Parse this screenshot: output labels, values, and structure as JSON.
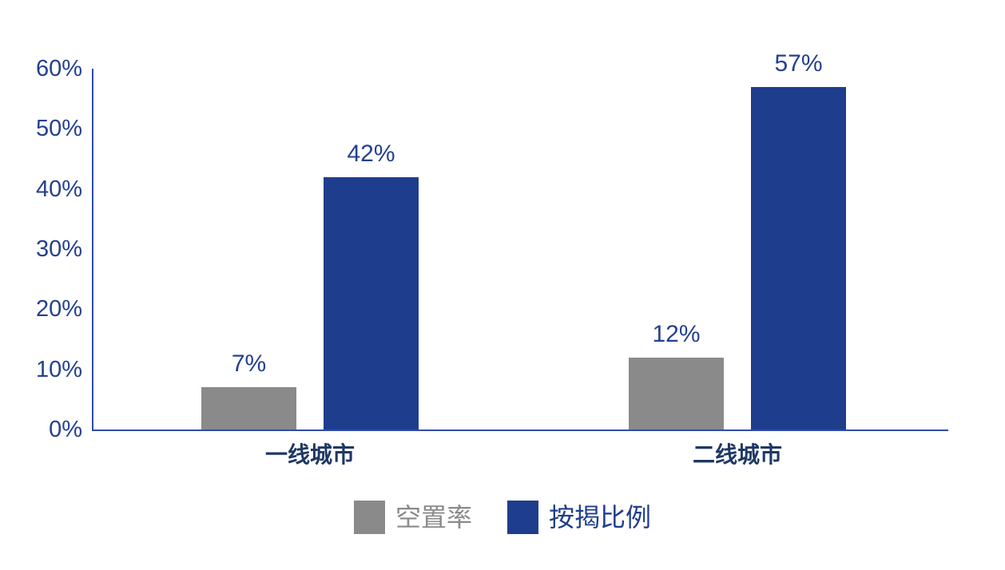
{
  "chart_data": {
    "type": "bar",
    "title": "",
    "xlabel": "",
    "ylabel": "",
    "categories": [
      "一线城市",
      "二线城市"
    ],
    "series": [
      {
        "name": "空置率",
        "color": "#8A8A8A",
        "legend_text_color": "#8A8A8A",
        "values": [
          7,
          12
        ],
        "value_labels": [
          "7%",
          "12%"
        ]
      },
      {
        "name": "按揭比例",
        "color": "#1E3D8C",
        "legend_text_color": "#1E3D8C",
        "values": [
          42,
          57
        ],
        "value_labels": [
          "42%",
          "57%"
        ]
      }
    ],
    "ylim": [
      0,
      60
    ],
    "yticks": [
      0,
      10,
      20,
      30,
      40,
      50,
      60
    ],
    "ytick_labels": [
      "0%",
      "10%",
      "20%",
      "30%",
      "40%",
      "50%",
      "60%"
    ],
    "grid": false,
    "legend_position": "bottom",
    "colors": {
      "background": "#FFFFFF",
      "axis": "#2F4CA8",
      "tick_label": "#24408F",
      "value_label": "#24408F",
      "category_label": "#1F3864"
    }
  }
}
